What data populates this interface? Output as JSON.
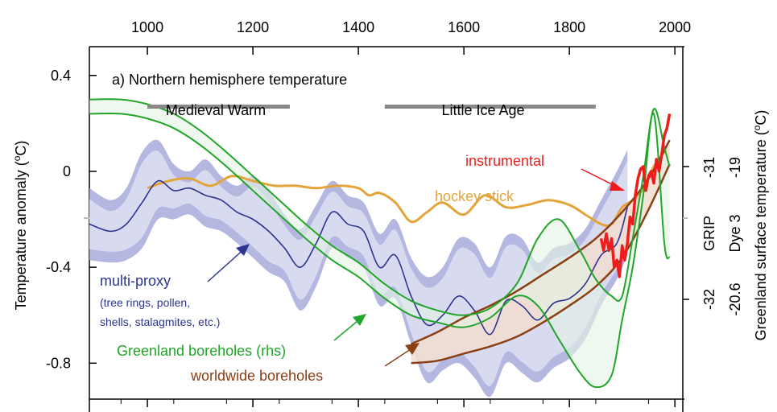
{
  "chart_data": {
    "type": "line",
    "title": "a) Northern hemisphere temperature",
    "xlim": [
      890,
      2015
    ],
    "ylim": [
      -0.95,
      0.52
    ],
    "x_ticks": [
      1000,
      1200,
      1400,
      1600,
      1800,
      2000
    ],
    "y_ticks": [
      0.4,
      0,
      -0.4,
      -0.8
    ],
    "y_tick_labels": [
      "0.4",
      "0",
      "-0.4",
      "-0.8"
    ],
    "ylabel": "Temperature anomaly (°C)",
    "ylabel_parts": {
      "main": "Temperature anomaly (",
      "sup": "o",
      "rest": "C)"
    },
    "right_axis": {
      "title_main": "Greenland surface temperature (",
      "title_sup": "o",
      "title_rest": "C)",
      "series_labels": [
        "GRIP",
        "Dye 3"
      ],
      "upper_values": [
        "-31",
        "-19"
      ],
      "lower_values": [
        "-32",
        "-20.6"
      ]
    },
    "periods": [
      {
        "label": "Medieval Warm",
        "start": 1000,
        "end": 1270,
        "y": 0.27
      },
      {
        "label": "Little Ice Age",
        "start": 1450,
        "end": 1850,
        "y": 0.27
      }
    ],
    "colors": {
      "multi_proxy": "#2c3590",
      "band_outer": "#a7acdc",
      "band_inner": "#dcdef2",
      "hockey_stick": "#e3a43a",
      "greenland": "#22a52a",
      "greenland_fill": "#e4f4e4",
      "boreholes": "#8b3f15",
      "boreholes_fill": "#f2ddd0",
      "instrumental": "#ee1c1c"
    },
    "annotations": [
      {
        "text": "instrumental",
        "color": "#ee1c1c"
      },
      {
        "text": "hockey stick",
        "color": "#e3a43a"
      },
      {
        "text": "multi-proxy",
        "color": "#2c3590"
      },
      {
        "text": "(tree rings, pollen,",
        "color": "#2c3590"
      },
      {
        "text": "shells, stalagmites, etc.)",
        "color": "#2c3590"
      },
      {
        "text": "Greenland boreholes (rhs)",
        "color": "#22a52a"
      },
      {
        "text": "worldwide boreholes",
        "color": "#8b3f15"
      }
    ],
    "series": [
      {
        "name": "multi-proxy",
        "x": [
          890,
          930,
          960,
          990,
          1020,
          1050,
          1080,
          1110,
          1140,
          1170,
          1200,
          1230,
          1260,
          1290,
          1320,
          1350,
          1380,
          1410,
          1440,
          1470,
          1500,
          1530,
          1560,
          1590,
          1620,
          1650,
          1680,
          1710,
          1740,
          1770,
          1800,
          1830,
          1860,
          1890,
          1910
        ],
        "y": [
          -0.22,
          -0.25,
          -0.22,
          -0.13,
          -0.04,
          -0.08,
          -0.07,
          -0.1,
          -0.12,
          -0.17,
          -0.2,
          -0.25,
          -0.32,
          -0.4,
          -0.3,
          -0.17,
          -0.22,
          -0.25,
          -0.4,
          -0.35,
          -0.52,
          -0.64,
          -0.6,
          -0.52,
          -0.58,
          -0.68,
          -0.54,
          -0.56,
          -0.62,
          -0.55,
          -0.53,
          -0.47,
          -0.35,
          -0.3,
          -0.15
        ]
      },
      {
        "name": "multi-proxy band upper",
        "x": [
          890,
          930,
          960,
          990,
          1020,
          1050,
          1080,
          1110,
          1140,
          1170,
          1200,
          1230,
          1260,
          1290,
          1320,
          1350,
          1380,
          1410,
          1440,
          1470,
          1500,
          1530,
          1560,
          1590,
          1620,
          1650,
          1680,
          1710,
          1740,
          1770,
          1800,
          1830,
          1860,
          1890,
          1910
        ],
        "y": [
          -0.07,
          -0.12,
          -0.07,
          0.08,
          0.13,
          0.03,
          0.0,
          0.05,
          -0.02,
          -0.06,
          -0.02,
          -0.08,
          -0.18,
          -0.24,
          -0.14,
          -0.04,
          -0.1,
          -0.13,
          -0.26,
          -0.2,
          -0.36,
          -0.44,
          -0.4,
          -0.28,
          -0.3,
          -0.4,
          -0.27,
          -0.28,
          -0.38,
          -0.32,
          -0.3,
          -0.24,
          -0.12,
          0.0,
          0.09
        ]
      },
      {
        "name": "multi-proxy band lower",
        "x": [
          890,
          930,
          960,
          990,
          1020,
          1050,
          1080,
          1110,
          1140,
          1170,
          1200,
          1230,
          1260,
          1290,
          1320,
          1350,
          1380,
          1410,
          1440,
          1470,
          1500,
          1530,
          1560,
          1590,
          1620,
          1650,
          1680,
          1710,
          1740,
          1770,
          1800,
          1830,
          1860,
          1890,
          1910
        ],
        "y": [
          -0.37,
          -0.38,
          -0.37,
          -0.32,
          -0.2,
          -0.2,
          -0.18,
          -0.23,
          -0.25,
          -0.3,
          -0.36,
          -0.42,
          -0.46,
          -0.58,
          -0.48,
          -0.32,
          -0.36,
          -0.4,
          -0.56,
          -0.53,
          -0.72,
          -0.88,
          -0.83,
          -0.8,
          -0.86,
          -0.94,
          -0.8,
          -0.84,
          -0.88,
          -0.82,
          -0.78,
          -0.7,
          -0.56,
          -0.45,
          -0.35
        ]
      },
      {
        "name": "hockey stick",
        "x": [
          1000,
          1040,
          1080,
          1120,
          1160,
          1200,
          1240,
          1280,
          1320,
          1360,
          1400,
          1420,
          1440,
          1470,
          1500,
          1530,
          1560,
          1600,
          1640,
          1680,
          1720,
          1760,
          1800,
          1830,
          1860,
          1880,
          1900,
          1920,
          1940,
          1960,
          1980
        ],
        "y": [
          -0.07,
          -0.04,
          -0.03,
          -0.06,
          -0.02,
          -0.04,
          -0.06,
          -0.06,
          -0.07,
          -0.06,
          -0.07,
          -0.1,
          -0.09,
          -0.13,
          -0.21,
          -0.17,
          -0.13,
          -0.18,
          -0.1,
          -0.15,
          -0.14,
          -0.12,
          -0.14,
          -0.18,
          -0.22,
          -0.22,
          -0.15,
          -0.12,
          -0.07,
          0.02,
          0.08
        ]
      },
      {
        "name": "Greenland boreholes upper",
        "x": [
          890,
          950,
          1000,
          1050,
          1100,
          1150,
          1200,
          1250,
          1300,
          1350,
          1400,
          1450,
          1500,
          1550,
          1600,
          1650,
          1700,
          1740,
          1780,
          1820,
          1850,
          1880,
          1900,
          1920,
          1940,
          1960,
          1980,
          1990
        ],
        "y": [
          0.3,
          0.3,
          0.28,
          0.24,
          0.17,
          0.08,
          -0.02,
          -0.12,
          -0.22,
          -0.31,
          -0.38,
          -0.47,
          -0.54,
          -0.58,
          -0.6,
          -0.57,
          -0.47,
          -0.28,
          -0.2,
          -0.33,
          -0.45,
          -0.52,
          -0.52,
          -0.28,
          -0.02,
          0.26,
          0.1,
          0.02
        ]
      },
      {
        "name": "Greenland boreholes lower",
        "x": [
          890,
          950,
          1000,
          1050,
          1100,
          1150,
          1200,
          1250,
          1300,
          1350,
          1400,
          1450,
          1500,
          1550,
          1600,
          1650,
          1700,
          1740,
          1780,
          1820,
          1850,
          1880,
          1900,
          1920,
          1940,
          1960,
          1980,
          1990
        ],
        "y": [
          0.24,
          0.24,
          0.22,
          0.18,
          0.11,
          0.02,
          -0.08,
          -0.18,
          -0.28,
          -0.37,
          -0.44,
          -0.53,
          -0.6,
          -0.63,
          -0.65,
          -0.61,
          -0.52,
          -0.56,
          -0.7,
          -0.84,
          -0.9,
          -0.85,
          -0.62,
          -0.4,
          -0.1,
          0.24,
          -0.3,
          -0.36
        ]
      },
      {
        "name": "worldwide boreholes upper",
        "x": [
          1500,
          1550,
          1600,
          1650,
          1700,
          1750,
          1800,
          1850,
          1900,
          1950,
          1990
        ],
        "y": [
          -0.72,
          -0.67,
          -0.61,
          -0.56,
          -0.5,
          -0.43,
          -0.36,
          -0.28,
          -0.17,
          -0.03,
          0.13
        ]
      },
      {
        "name": "worldwide boreholes lower",
        "x": [
          1500,
          1550,
          1600,
          1650,
          1700,
          1750,
          1800,
          1850,
          1900,
          1950,
          1990
        ],
        "y": [
          -0.8,
          -0.79,
          -0.76,
          -0.73,
          -0.69,
          -0.63,
          -0.56,
          -0.48,
          -0.36,
          -0.16,
          0.03
        ]
      },
      {
        "name": "instrumental",
        "x": [
          1860,
          1865,
          1870,
          1875,
          1880,
          1885,
          1890,
          1895,
          1900,
          1905,
          1910,
          1915,
          1920,
          1925,
          1930,
          1935,
          1940,
          1945,
          1950,
          1955,
          1960,
          1965,
          1970,
          1975,
          1980,
          1985,
          1990
        ],
        "y": [
          -0.28,
          -0.33,
          -0.26,
          -0.33,
          -0.28,
          -0.4,
          -0.37,
          -0.44,
          -0.31,
          -0.37,
          -0.3,
          -0.19,
          -0.22,
          -0.1,
          -0.03,
          0.01,
          0.02,
          -0.08,
          -0.02,
          0.0,
          -0.05,
          0.05,
          0.0,
          0.07,
          0.15,
          0.18,
          0.24
        ]
      }
    ]
  }
}
